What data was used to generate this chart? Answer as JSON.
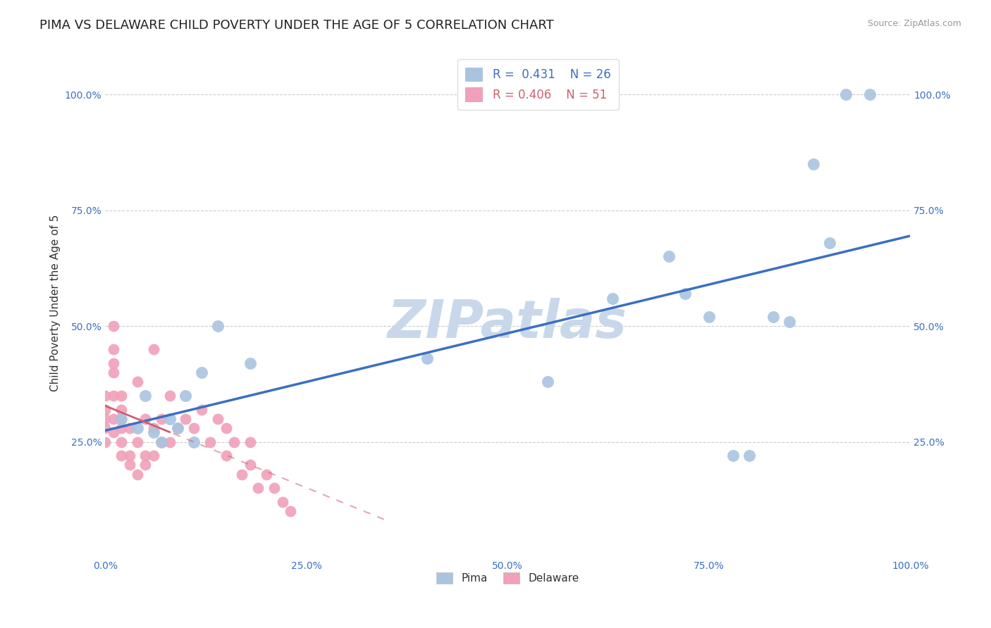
{
  "title": "PIMA VS DELAWARE CHILD POVERTY UNDER THE AGE OF 5 CORRELATION CHART",
  "source": "Source: ZipAtlas.com",
  "xlabel": "",
  "ylabel": "Child Poverty Under the Age of 5",
  "pima_R": 0.431,
  "pima_N": 26,
  "delaware_R": 0.406,
  "delaware_N": 51,
  "pima_color": "#aac4e0",
  "delaware_color": "#f0a0b8",
  "pima_line_color": "#3a6fc4",
  "delaware_line_color": "#d06070",
  "watermark_color": "#c8d8ea",
  "pima_x": [
    0.02,
    0.04,
    0.05,
    0.06,
    0.07,
    0.08,
    0.09,
    0.1,
    0.11,
    0.12,
    0.14,
    0.18,
    0.4,
    0.55,
    0.63,
    0.7,
    0.72,
    0.75,
    0.78,
    0.8,
    0.83,
    0.85,
    0.88,
    0.9,
    0.92,
    0.95
  ],
  "pima_y": [
    0.3,
    0.28,
    0.35,
    0.27,
    0.25,
    0.3,
    0.28,
    0.35,
    0.25,
    0.4,
    0.5,
    0.42,
    0.43,
    0.38,
    0.56,
    0.65,
    0.57,
    0.52,
    0.22,
    0.22,
    0.52,
    0.51,
    0.85,
    0.68,
    1.0,
    1.0
  ],
  "delaware_x": [
    0.0,
    0.0,
    0.0,
    0.0,
    0.0,
    0.01,
    0.01,
    0.01,
    0.01,
    0.01,
    0.01,
    0.01,
    0.02,
    0.02,
    0.02,
    0.02,
    0.02,
    0.02,
    0.03,
    0.03,
    0.03,
    0.04,
    0.04,
    0.04,
    0.05,
    0.05,
    0.05,
    0.06,
    0.06,
    0.06,
    0.07,
    0.07,
    0.08,
    0.08,
    0.09,
    0.1,
    0.11,
    0.12,
    0.13,
    0.14,
    0.15,
    0.15,
    0.16,
    0.17,
    0.18,
    0.18,
    0.19,
    0.2,
    0.21,
    0.22,
    0.23
  ],
  "delaware_y": [
    0.25,
    0.28,
    0.3,
    0.32,
    0.35,
    0.27,
    0.3,
    0.35,
    0.4,
    0.42,
    0.45,
    0.5,
    0.22,
    0.25,
    0.28,
    0.3,
    0.32,
    0.35,
    0.2,
    0.22,
    0.28,
    0.18,
    0.25,
    0.38,
    0.2,
    0.22,
    0.3,
    0.22,
    0.28,
    0.45,
    0.25,
    0.3,
    0.25,
    0.35,
    0.28,
    0.3,
    0.28,
    0.32,
    0.25,
    0.3,
    0.22,
    0.28,
    0.25,
    0.18,
    0.2,
    0.25,
    0.15,
    0.18,
    0.15,
    0.12,
    0.1
  ],
  "xlim": [
    0.0,
    1.0
  ],
  "ylim": [
    0.0,
    1.1
  ],
  "xticks": [
    0.0,
    0.25,
    0.5,
    0.75,
    1.0
  ],
  "yticks": [
    0.0,
    0.25,
    0.5,
    0.75,
    1.0
  ],
  "xticklabels": [
    "0.0%",
    "25.0%",
    "50.0%",
    "75.0%",
    "100.0%"
  ],
  "yticklabels": [
    "",
    "25.0%",
    "50.0%",
    "75.0%",
    "100.0%"
  ],
  "background_color": "#ffffff",
  "grid_color": "#cccccc",
  "title_fontsize": 13,
  "axis_label_fontsize": 11,
  "tick_fontsize": 10
}
